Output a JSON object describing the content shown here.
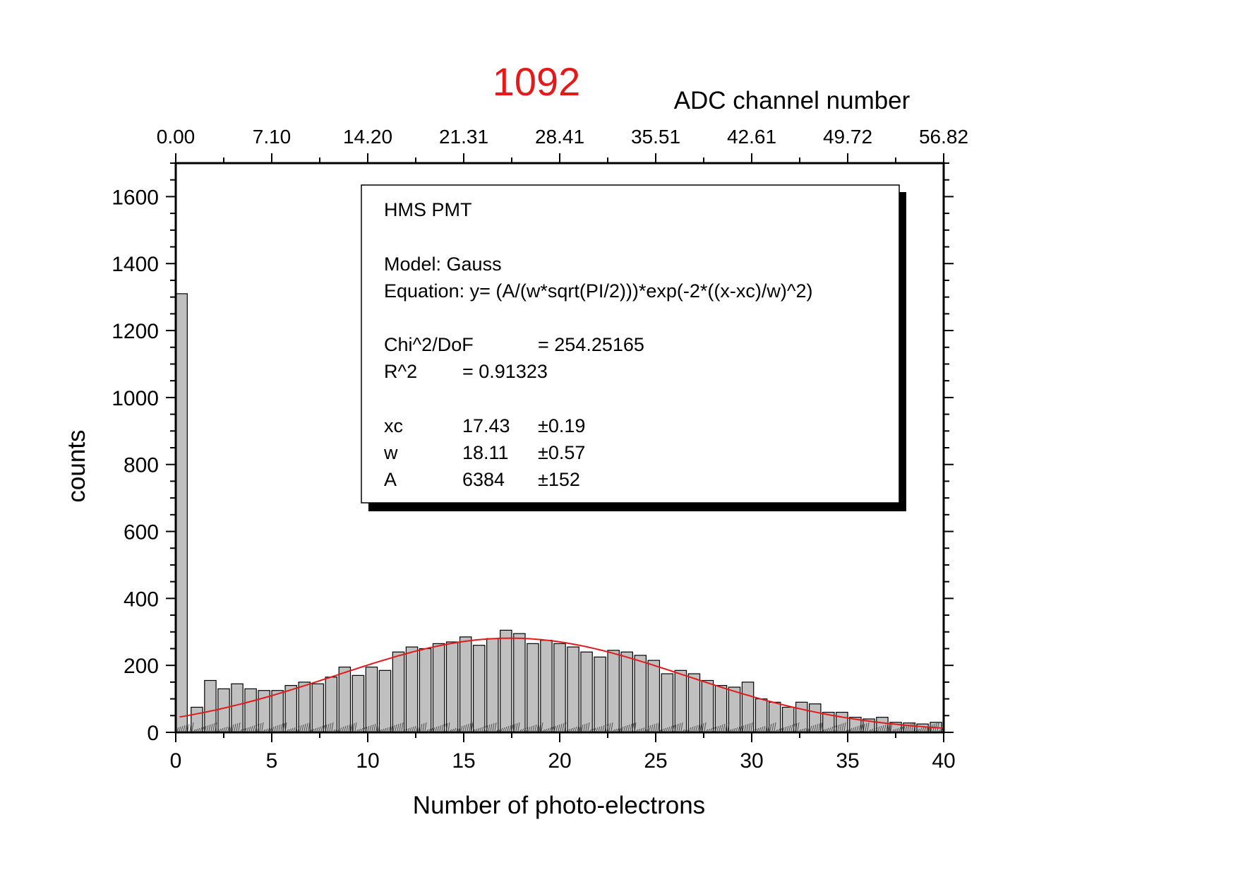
{
  "chart_data": {
    "type": "bar",
    "title": "1092",
    "xlabel": "Number of photo-electrons",
    "ylabel": "counts",
    "x2label": "ADC channel number",
    "xlim": [
      0,
      40
    ],
    "ylim": [
      0,
      1700
    ],
    "x_ticks": [
      0,
      5,
      10,
      15,
      20,
      25,
      30,
      35,
      40
    ],
    "x_tick_labels": [
      "0",
      "5",
      "10",
      "15",
      "20",
      "25",
      "30",
      "35",
      "40"
    ],
    "y_ticks": [
      0,
      200,
      400,
      600,
      800,
      1000,
      1200,
      1400,
      1600
    ],
    "y_tick_labels": [
      "0",
      "200",
      "400",
      "600",
      "800",
      "1000",
      "1200",
      "1400",
      "1600"
    ],
    "x2_ticks": [
      0,
      5,
      10,
      15,
      20,
      25,
      30,
      35,
      40
    ],
    "x2_tick_labels": [
      "0.00",
      "7.10",
      "14.20",
      "21.31",
      "28.41",
      "35.51",
      "42.61",
      "49.72",
      "56.82"
    ],
    "grid": false,
    "bar_width": 0.6,
    "bars": {
      "x": [
        0.3,
        1.1,
        1.8,
        2.5,
        3.2,
        3.9,
        4.6,
        5.3,
        6.0,
        6.7,
        7.4,
        8.1,
        8.8,
        9.5,
        10.2,
        10.9,
        11.6,
        12.3,
        13.0,
        13.7,
        14.4,
        15.1,
        15.8,
        16.5,
        17.2,
        17.9,
        18.6,
        19.3,
        20.0,
        20.7,
        21.4,
        22.1,
        22.8,
        23.5,
        24.2,
        24.9,
        25.6,
        26.3,
        27.0,
        27.7,
        28.4,
        29.1,
        29.8,
        30.5,
        31.2,
        31.9,
        32.6,
        33.3,
        34.0,
        34.7,
        35.4,
        36.1,
        36.8,
        37.5,
        38.2,
        38.9,
        39.6
      ],
      "values": [
        1310,
        75,
        155,
        130,
        145,
        130,
        125,
        125,
        140,
        150,
        145,
        165,
        195,
        170,
        195,
        185,
        240,
        255,
        250,
        265,
        270,
        285,
        260,
        280,
        305,
        295,
        265,
        275,
        265,
        255,
        240,
        225,
        245,
        240,
        230,
        215,
        175,
        185,
        175,
        155,
        140,
        135,
        150,
        100,
        90,
        75,
        90,
        85,
        60,
        60,
        45,
        40,
        45,
        30,
        28,
        25,
        30
      ]
    },
    "fit_curve": {
      "name": "Gauss",
      "color": "#e41a1a",
      "xc": 17.43,
      "w": 18.11,
      "A": 6384,
      "x_range": [
        0.2,
        40
      ]
    },
    "bar_color": "#c0c0c0",
    "box_lines": [
      "HMS PMT",
      "",
      "Model: Gauss",
      "Equation: y= (A/(w*sqrt(PI/2)))*exp(-2*((x-xc)/w)^2)",
      "",
      "Chi^2/DoF        = 254.25165",
      "R^2      =  0.91323",
      "",
      "xc        17.43    ±0.19",
      "w         18.11    ±0.57",
      "A         6384     ±152"
    ],
    "fit_table": [
      {
        "name": "xc",
        "value": "17.43",
        "error": "±0.19"
      },
      {
        "name": "w",
        "value": "18.11",
        "error": "±0.57"
      },
      {
        "name": "A",
        "value": "6384",
        "error": "±152"
      }
    ],
    "fit_box": {
      "title": "HMS PMT",
      "model": "Model: Gauss",
      "equation": "Equation: y= (A/(w*sqrt(PI/2)))*exp(-2*((x-xc)/w)^2)",
      "chi_label": "Chi^2/DoF",
      "chi_value": "= 254.25165",
      "r2_label": "R^2",
      "r2_value": "=  0.91323"
    }
  }
}
